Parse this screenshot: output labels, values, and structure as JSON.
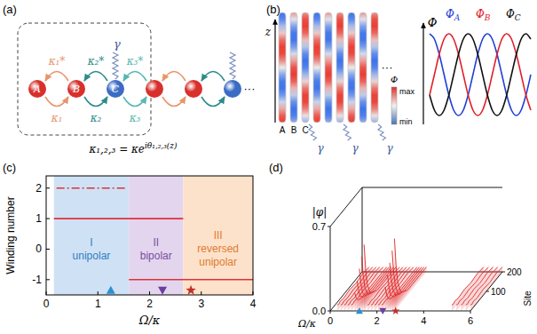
{
  "panel_a": {
    "letter": "(a)",
    "sites": [
      "A",
      "B",
      "C",
      null,
      null,
      null
    ],
    "site_colors": [
      "#d8302c",
      "#d8302c",
      "#3b6cc4",
      "#d8302c",
      "#d8302c",
      "#3b6cc4"
    ],
    "couplings": [
      {
        "top": "κ₁*",
        "bottom": "κ₁",
        "color": "#e8956a"
      },
      {
        "top": "κ₂*",
        "bottom": "κ₂",
        "color": "#2e8b8b"
      },
      {
        "top": "κ₃*",
        "bottom": "κ₃",
        "color": "#58b7b0"
      }
    ],
    "gamma": "γ",
    "dots": "···",
    "equation": "κ₁,₂,₃ = κe",
    "equation_exponent": "iθ₁,₂,₃(z)"
  },
  "panel_b": {
    "letter": "(b)",
    "z_label": "z",
    "site_labels": [
      "A",
      "B",
      "C"
    ],
    "waveguides": 9,
    "gamma": "γ",
    "dots": "···",
    "colorbar": {
      "label": "Φ",
      "max": "max",
      "min": "min"
    },
    "plot": {
      "y_label": "Φ",
      "x": [
        0,
        30,
        60,
        90,
        120,
        150,
        180,
        210,
        240,
        270,
        300,
        330,
        360,
        390,
        420,
        450,
        480,
        510,
        540,
        570,
        600,
        630
      ],
      "curves": [
        {
          "symbol": "Φ",
          "sub": "A",
          "color": "#1f3fd6",
          "values": [
            1,
            0.87,
            0.5,
            0,
            -0.5,
            -0.87,
            -1,
            -0.87,
            -0.5,
            0,
            0.5,
            0.87,
            1,
            0.87,
            0.5,
            0,
            -0.5,
            -0.87,
            -1,
            -0.87,
            -0.5,
            0
          ]
        },
        {
          "symbol": "Φ",
          "sub": "B",
          "color": "#e0202a",
          "values": [
            -0.5,
            0,
            0.5,
            0.87,
            1,
            0.87,
            0.5,
            0,
            -0.5,
            -0.87,
            -1,
            -0.87,
            -0.5,
            0,
            0.5,
            0.87,
            1,
            0.87,
            0.5,
            0,
            -0.5,
            -0.87
          ]
        },
        {
          "symbol": "Φ",
          "sub": "C",
          "color": "#111111",
          "values": [
            -0.5,
            -0.87,
            -1,
            -0.87,
            -0.5,
            0,
            0.5,
            0.87,
            1,
            0.87,
            0.5,
            0,
            -0.5,
            -0.87,
            -1,
            -0.87,
            -0.5,
            0,
            0.5,
            0.87,
            1,
            0.87
          ]
        }
      ]
    }
  },
  "chart_data": {
    "type": "line",
    "title": "(c)",
    "x_label": "Ω/κ",
    "y_label": "Winding number",
    "xlim": [
      0,
      4
    ],
    "ylim": [
      -1.5,
      2.4
    ],
    "xticks": [
      0,
      1,
      2,
      3,
      4
    ],
    "yticks": [
      -1,
      0,
      1,
      2
    ],
    "regions": [
      {
        "label": [
          "I",
          "unipolar"
        ],
        "x": [
          0.15,
          1.6
        ],
        "color": "#cfe2f5",
        "text_color": "#2f7fc0"
      },
      {
        "label": [
          "II",
          "bipolar"
        ],
        "x": [
          1.6,
          2.65
        ],
        "color": "#e3d5ee",
        "text_color": "#7a4fa0"
      },
      {
        "label": [
          "III",
          "reversed",
          "unipolar"
        ],
        "x": [
          2.65,
          4
        ],
        "color": "#fde2cb",
        "text_color": "#e07b30"
      }
    ],
    "lines": [
      {
        "value": 2,
        "x": [
          0.2,
          1.55
        ],
        "line_style": "dashdot",
        "color": "#e0303a"
      },
      {
        "value": 1,
        "x": [
          0.15,
          2.65
        ],
        "line_style": "solid",
        "color": "#e0303a"
      },
      {
        "value": -1,
        "x": [
          1.6,
          4
        ],
        "line_style": "solid",
        "color": "#e0303a"
      }
    ],
    "markers": [
      {
        "x": 1.25,
        "y": -1.35,
        "marker": "triangle-up",
        "color": "#2f8fd0"
      },
      {
        "x": 2.25,
        "y": -1.35,
        "marker": "triangle-down",
        "color": "#6a3fa0"
      },
      {
        "x": 2.8,
        "y": -1.35,
        "marker": "star",
        "color": "#c0302a"
      }
    ]
  },
  "panel_d": {
    "letter": "(d)",
    "z_label": "|φ|",
    "x_label": "Ω/κ",
    "site_label": "Site",
    "xlim": [
      0,
      6
    ],
    "xticks": [
      0,
      2,
      4,
      6
    ],
    "site_lim": [
      0,
      200
    ],
    "site_ticks": [
      100,
      200
    ],
    "zlim": [
      0,
      0.7
    ],
    "zticks": [
      {
        "value": 0,
        "label": "0.0"
      },
      0.7
    ],
    "color": "#e02828",
    "sites": [
      0,
      10,
      20,
      40,
      80,
      120,
      160,
      200
    ],
    "modes": [
      {
        "omega": 0.3,
        "heights": [
          0.05,
          0.04,
          0.05,
          0.04,
          0.05,
          0.04,
          0.05,
          0.04
        ]
      },
      {
        "omega": 0.45,
        "heights": [
          0.05,
          0.04,
          0.05,
          0.04,
          0.05,
          0.04,
          0.05,
          0.04
        ]
      },
      {
        "omega": 0.6,
        "heights": [
          0.05,
          0.04,
          0.05,
          0.04,
          0.05,
          0.04,
          0.05,
          0.04
        ]
      },
      {
        "omega": 0.75,
        "heights": [
          0.05,
          0.04,
          0.05,
          0.04,
          0.05,
          0.04,
          0.05,
          0.04
        ]
      },
      {
        "omega": 0.9,
        "heights": [
          0.05,
          0.04,
          0.05,
          0.04,
          0.05,
          0.04,
          0.05,
          0.04
        ]
      },
      {
        "omega": 1.05,
        "heights": [
          0.15,
          0.09,
          0.06,
          0.04,
          0.04,
          0.04,
          0.04,
          0.04
        ]
      },
      {
        "omega": 1.15,
        "heights": [
          0.25,
          0.15,
          0.09,
          0.05,
          0.04,
          0.04,
          0.04,
          0.04
        ]
      },
      {
        "omega": 1.25,
        "heights": [
          0.35,
          0.21,
          0.12,
          0.06,
          0.04,
          0.04,
          0.04,
          0.04
        ]
      },
      {
        "omega": 1.35,
        "heights": [
          0.45,
          0.27,
          0.16,
          0.07,
          0.04,
          0.04,
          0.04,
          0.04
        ]
      },
      {
        "omega": 1.45,
        "heights": [
          0.55,
          0.33,
          0.19,
          0.08,
          0.04,
          0.04,
          0.04,
          0.04
        ]
      },
      {
        "omega": 1.6,
        "heights": [
          0.05,
          0.04,
          0.05,
          0.04,
          0.05,
          0.04,
          0.05,
          0.04
        ]
      },
      {
        "omega": 1.75,
        "heights": [
          0.05,
          0.04,
          0.05,
          0.04,
          0.05,
          0.04,
          0.05,
          0.04
        ]
      },
      {
        "omega": 1.9,
        "heights": [
          0.05,
          0.04,
          0.05,
          0.04,
          0.05,
          0.04,
          0.05,
          0.04
        ]
      },
      {
        "omega": 2.05,
        "heights": [
          0.05,
          0.04,
          0.05,
          0.04,
          0.05,
          0.04,
          0.05,
          0.04
        ]
      },
      {
        "omega": 2.2,
        "heights": [
          0.05,
          0.04,
          0.05,
          0.04,
          0.05,
          0.04,
          0.05,
          0.04
        ]
      },
      {
        "omega": 2.35,
        "heights": [
          0.2,
          0.12,
          0.07,
          0.04,
          0.04,
          0.04,
          0.04,
          0.04
        ]
      },
      {
        "omega": 2.45,
        "heights": [
          0.3,
          0.18,
          0.1,
          0.05,
          0.04,
          0.04,
          0.04,
          0.04
        ]
      },
      {
        "omega": 2.55,
        "heights": [
          0.4,
          0.24,
          0.14,
          0.06,
          0.04,
          0.04,
          0.04,
          0.04
        ]
      },
      {
        "omega": 2.65,
        "heights": [
          0.5,
          0.3,
          0.18,
          0.07,
          0.04,
          0.04,
          0.04,
          0.04
        ]
      },
      {
        "omega": 2.75,
        "heights": [
          0.6,
          0.36,
          0.21,
          0.09,
          0.04,
          0.04,
          0.04,
          0.04
        ]
      },
      {
        "omega": 5.2,
        "heights": [
          0.05,
          0.04,
          0.05,
          0.04,
          0.05,
          0.04,
          0.05,
          0.04
        ]
      },
      {
        "omega": 5.4,
        "heights": [
          0.05,
          0.04,
          0.05,
          0.04,
          0.05,
          0.04,
          0.05,
          0.04
        ]
      },
      {
        "omega": 5.6,
        "heights": [
          0.05,
          0.04,
          0.05,
          0.04,
          0.05,
          0.04,
          0.05,
          0.04
        ]
      },
      {
        "omega": 5.8,
        "heights": [
          0.05,
          0.04,
          0.05,
          0.04,
          0.05,
          0.04,
          0.05,
          0.04
        ]
      },
      {
        "omega": 6.0,
        "heights": [
          0.05,
          0.04,
          0.05,
          0.04,
          0.05,
          0.04,
          0.05,
          0.04
        ]
      }
    ],
    "markers": [
      {
        "omega": 1.25,
        "marker": "triangle-up",
        "color": "#2f8fd0"
      },
      {
        "omega": 2.25,
        "marker": "triangle-down",
        "color": "#6a3fa0"
      },
      {
        "omega": 2.8,
        "marker": "star",
        "color": "#c0302a"
      }
    ]
  }
}
